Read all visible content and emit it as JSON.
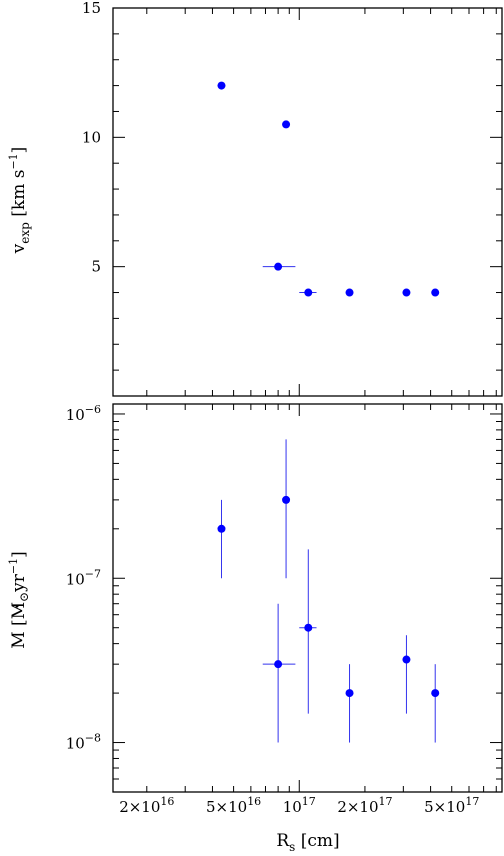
{
  "colors": {
    "points": "#0000ff",
    "errorbars": "#3333ee",
    "axes": "#000000"
  },
  "chart_data": [
    {
      "type": "scatter",
      "xscale": "log",
      "yscale": "linear",
      "xlim": [
        1.4e+16,
        8.5e+17
      ],
      "ylim": [
        0,
        15
      ],
      "ylabel": {
        "main": "v",
        "sub": "exp",
        "rest": " [km s",
        "sup": "−1",
        "end": "]"
      },
      "ytick_labels": [
        "5",
        "10",
        "15"
      ],
      "ytick_values": [
        5,
        10,
        15
      ],
      "points": [
        {
          "x": 4.4e+16,
          "y": 12,
          "xerr": null
        },
        {
          "x": 8.7e+16,
          "y": 10.5,
          "xerr": null
        },
        {
          "x": 8e+16,
          "y": 5,
          "xerr": [
            6.8e+16,
            9.6e+16
          ]
        },
        {
          "x": 1.1e+17,
          "y": 4,
          "xerr": [
            1e+17,
            1.2e+17
          ]
        },
        {
          "x": 1.7e+17,
          "y": 4,
          "xerr": null
        },
        {
          "x": 3.1e+17,
          "y": 4,
          "xerr": null
        },
        {
          "x": 4.2e+17,
          "y": 4,
          "xerr": null
        }
      ]
    },
    {
      "type": "scatter",
      "xscale": "log",
      "yscale": "log",
      "xlim": [
        1.4e+16,
        8.5e+17
      ],
      "ylim": [
        5e-09,
        1.15e-06
      ],
      "xlabel": {
        "main": "R",
        "sub": "s",
        "rest": " [cm]"
      },
      "ylabel": {
        "main": "M",
        "rest": " [M",
        "odot": "⊙",
        "mid": "yr",
        "sup": "−1",
        "end": "]"
      },
      "xtick_labels": [
        {
          "value": 2e+16,
          "mant": "2×10",
          "exp": "16"
        },
        {
          "value": 5e+16,
          "mant": "5×10",
          "exp": "16"
        },
        {
          "value": 1e+17,
          "mant": "10",
          "exp": "17"
        },
        {
          "value": 2e+17,
          "mant": "2×10",
          "exp": "17"
        },
        {
          "value": 5e+17,
          "mant": "5×10",
          "exp": "17"
        }
      ],
      "ytick_labels": [
        {
          "value": 1e-06,
          "mant": "10",
          "exp": "−6"
        },
        {
          "value": 1e-07,
          "mant": "10",
          "exp": "−7"
        },
        {
          "value": 1e-08,
          "mant": "10",
          "exp": "−8"
        }
      ],
      "points": [
        {
          "x": 4.4e+16,
          "y": 2e-07,
          "yerr": [
            1e-07,
            3e-07
          ],
          "xerr": null
        },
        {
          "x": 8.7e+16,
          "y": 3e-07,
          "yerr": [
            1e-07,
            7e-07
          ],
          "xerr": null
        },
        {
          "x": 8e+16,
          "y": 3e-08,
          "yerr": [
            1e-08,
            7e-08
          ],
          "xerr": [
            6.8e+16,
            9.6e+16
          ]
        },
        {
          "x": 1.1e+17,
          "y": 5e-08,
          "yerr": [
            1.5e-08,
            1.5e-07
          ],
          "xerr": [
            1e+17,
            1.2e+17
          ]
        },
        {
          "x": 1.7e+17,
          "y": 2e-08,
          "yerr": [
            1e-08,
            3e-08
          ],
          "xerr": null
        },
        {
          "x": 3.1e+17,
          "y": 3.2e-08,
          "yerr": [
            1.5e-08,
            4.5e-08
          ],
          "xerr": null
        },
        {
          "x": 4.2e+17,
          "y": 2e-08,
          "yerr": [
            1e-08,
            3e-08
          ],
          "xerr": null
        }
      ]
    }
  ]
}
